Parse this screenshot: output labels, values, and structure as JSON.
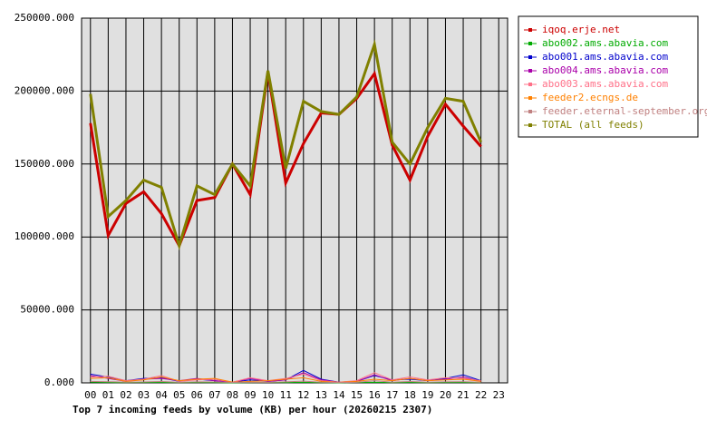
{
  "chart_data": {
    "type": "line",
    "title": "Top 7 incoming feeds by volume (KB) per hour (20260215 2307)",
    "categories": [
      "00",
      "01",
      "02",
      "03",
      "04",
      "05",
      "06",
      "07",
      "08",
      "09",
      "10",
      "11",
      "12",
      "13",
      "14",
      "15",
      "16",
      "17",
      "18",
      "19",
      "20",
      "21",
      "22",
      "23"
    ],
    "ylim": [
      0,
      250000
    ],
    "yticks": [
      {
        "value": 0,
        "label": "0.000"
      },
      {
        "value": 50000,
        "label": "50000.000"
      },
      {
        "value": 100000,
        "label": "100000.000"
      },
      {
        "value": 150000,
        "label": "150000.000"
      },
      {
        "value": 200000,
        "label": "200000.000"
      },
      {
        "value": 250000,
        "label": "250000.000"
      }
    ],
    "grid": true,
    "legend": "right",
    "series": [
      {
        "name": "iqoq.erje.net",
        "color": "#cc0000",
        "values": [
          178000,
          101000,
          123000,
          131000,
          116000,
          94000,
          125000,
          127000,
          150000,
          129000,
          213000,
          137000,
          164000,
          185000,
          184000,
          195000,
          212000,
          163000,
          139000,
          169000,
          191000,
          176000,
          162000,
          null
        ]
      },
      {
        "name": "abo002.ams.abavia.com",
        "color": "#00aa00",
        "values": [
          500,
          300,
          200,
          400,
          300,
          200,
          300,
          200,
          100,
          200,
          300,
          200,
          400,
          200,
          100,
          300,
          400,
          200,
          300,
          200,
          300,
          300,
          200,
          null
        ]
      },
      {
        "name": "abo001.ams.abavia.com",
        "color": "#0000cc",
        "values": [
          6000,
          4000,
          1500,
          3000,
          3500,
          1000,
          2500,
          1500,
          500,
          2000,
          1000,
          2000,
          8500,
          2500,
          500,
          1000,
          5000,
          2000,
          2500,
          1500,
          3000,
          5500,
          1500,
          null
        ]
      },
      {
        "name": "abo004.ams.abavia.com",
        "color": "#aa00aa",
        "values": [
          5000,
          3000,
          1000,
          2500,
          3000,
          1500,
          3000,
          1500,
          500,
          3000,
          1000,
          2000,
          7000,
          2000,
          500,
          1000,
          5500,
          1500,
          3000,
          1500,
          2500,
          4000,
          1000,
          null
        ]
      },
      {
        "name": "abo003.ams.abavia.com",
        "color": "#ff7088",
        "values": [
          4000,
          4500,
          1500,
          2500,
          5000,
          1000,
          2000,
          2500,
          500,
          3500,
          1500,
          3000,
          6000,
          1500,
          500,
          1500,
          7000,
          2000,
          4000,
          2000,
          3500,
          3000,
          1500,
          null
        ]
      },
      {
        "name": "feeder2.ecngs.de",
        "color": "#ff8000",
        "values": [
          3000,
          3500,
          1000,
          2000,
          4000,
          1500,
          2500,
          3000,
          500,
          1000,
          1500,
          2500,
          3500,
          1000,
          300,
          1000,
          2500,
          1500,
          3000,
          1500,
          2000,
          2500,
          1000,
          null
        ]
      },
      {
        "name": "feeder.eternal-september.org",
        "color": "#c08080",
        "values": [
          1000,
          800,
          500,
          600,
          900,
          400,
          700,
          600,
          300,
          500,
          400,
          700,
          1200,
          500,
          200,
          400,
          1500,
          500,
          900,
          500,
          700,
          800,
          400,
          null
        ]
      },
      {
        "name": "TOTAL (all feeds)",
        "color": "#808000",
        "values": [
          198000,
          114000,
          125000,
          139000,
          134000,
          94000,
          135000,
          129000,
          150000,
          135000,
          214000,
          147000,
          193000,
          186000,
          184000,
          196000,
          232000,
          165000,
          150000,
          175000,
          195000,
          193000,
          165000,
          null
        ]
      }
    ]
  }
}
